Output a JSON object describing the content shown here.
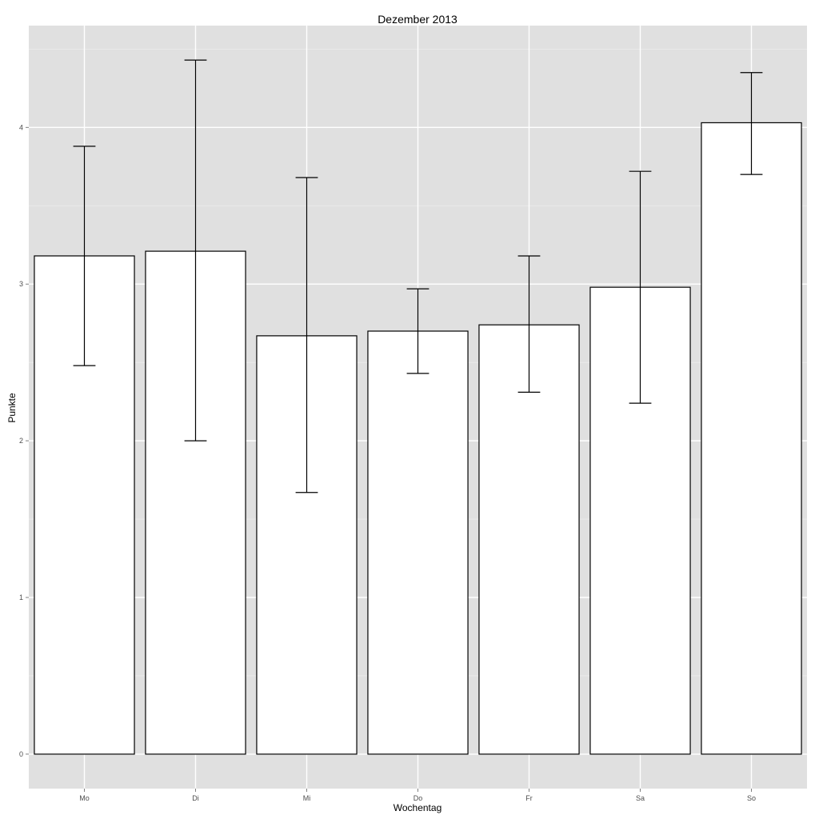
{
  "chart_data": {
    "type": "bar",
    "title": "Dezember 2013",
    "xlabel": "Wochentag",
    "ylabel": "Punkte",
    "categories": [
      "Mo",
      "Di",
      "Mi",
      "Do",
      "Fr",
      "Sa",
      "So"
    ],
    "values": [
      3.18,
      3.21,
      2.67,
      2.7,
      2.74,
      2.98,
      4.03
    ],
    "error_low": [
      2.48,
      2.0,
      1.67,
      2.43,
      2.31,
      2.24,
      3.7
    ],
    "error_high": [
      3.88,
      4.43,
      3.68,
      2.97,
      3.18,
      3.72,
      4.35
    ],
    "ylim": [
      -0.22,
      4.65
    ],
    "y_ticks": [
      0,
      1,
      2,
      3,
      4
    ],
    "grid": true,
    "legend": "none",
    "colors": {
      "panel_background": "#e0e0e0",
      "grid_major": "#ffffff",
      "grid_minor": "#ececec",
      "bar_fill": "#ffffff",
      "bar_stroke": "#000000",
      "error_bar": "#000000",
      "tick_label": "#4d4d4d"
    }
  }
}
